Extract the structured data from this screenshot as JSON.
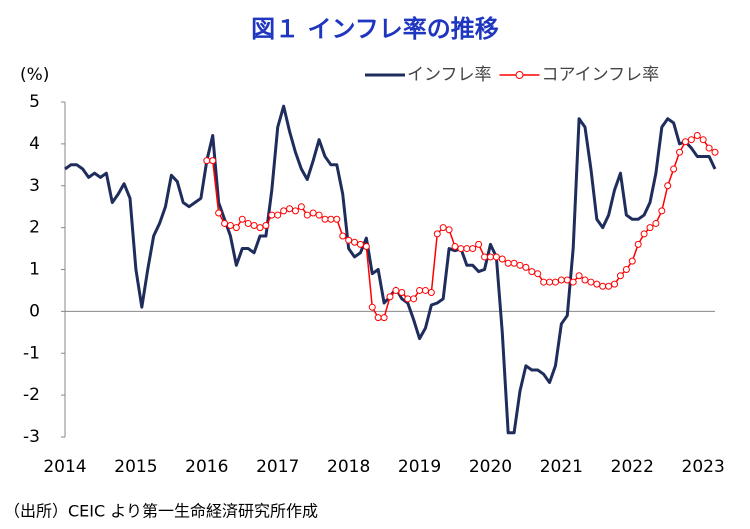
{
  "chart_data": {
    "type": "line",
    "title": "図１ インフレ率の推移",
    "y_label": "(%)",
    "source": "（出所）CEIC より第一生命経済研究所作成",
    "categories": [
      "2014",
      null,
      null,
      null,
      null,
      null,
      null,
      null,
      null,
      null,
      null,
      null,
      "2015",
      null,
      null,
      null,
      null,
      null,
      null,
      null,
      null,
      null,
      null,
      null,
      "2016",
      null,
      null,
      null,
      null,
      null,
      null,
      null,
      null,
      null,
      null,
      null,
      "2017",
      null,
      null,
      null,
      null,
      null,
      null,
      null,
      null,
      null,
      null,
      null,
      "2018",
      null,
      null,
      null,
      null,
      null,
      null,
      null,
      null,
      null,
      null,
      null,
      "2019",
      null,
      null,
      null,
      null,
      null,
      null,
      null,
      null,
      null,
      null,
      null,
      "2020",
      null,
      null,
      null,
      null,
      null,
      null,
      null,
      null,
      null,
      null,
      null,
      "2021",
      null,
      null,
      null,
      null,
      null,
      null,
      null,
      null,
      null,
      null,
      null,
      "2022",
      null,
      null,
      null,
      null,
      null,
      null,
      null,
      null,
      null,
      null,
      null,
      "2023",
      null,
      null
    ],
    "series": [
      {
        "name": "インフレ率",
        "color": "#1f2d5c",
        "marker": false,
        "values": [
          3.4,
          3.5,
          3.5,
          3.4,
          3.2,
          3.3,
          3.2,
          3.3,
          2.6,
          2.8,
          3.05,
          2.7,
          1.0,
          0.1,
          1.0,
          1.8,
          2.1,
          2.5,
          3.25,
          3.1,
          2.6,
          2.5,
          2.6,
          2.7,
          3.6,
          4.2,
          2.6,
          2.2,
          1.8,
          1.1,
          1.5,
          1.5,
          1.4,
          1.8,
          1.8,
          2.9,
          4.4,
          4.9,
          4.3,
          3.8,
          3.4,
          3.15,
          3.6,
          4.1,
          3.7,
          3.5,
          3.5,
          2.8,
          1.5,
          1.3,
          1.4,
          1.75,
          0.9,
          1.0,
          0.2,
          0.35,
          0.55,
          0.3,
          0.2,
          -0.2,
          -0.65,
          -0.4,
          0.15,
          0.2,
          0.3,
          1.5,
          1.45,
          1.5,
          1.1,
          1.1,
          0.95,
          1.0,
          1.6,
          1.3,
          -0.5,
          -2.9,
          -2.9,
          -1.9,
          -1.3,
          -1.4,
          -1.4,
          -1.5,
          -1.7,
          -1.3,
          -0.3,
          -0.1,
          1.5,
          4.6,
          4.4,
          3.4,
          2.2,
          2.0,
          2.3,
          2.9,
          3.3,
          2.3,
          2.2,
          2.2,
          2.3,
          2.6,
          3.3,
          4.4,
          4.6,
          4.5,
          4.0,
          4.05,
          3.9,
          3.7,
          3.7,
          3.7,
          3.4
        ]
      },
      {
        "name": "コアインフレ率",
        "color": "#ff0000",
        "marker": true,
        "values": [
          null,
          null,
          null,
          null,
          null,
          null,
          null,
          null,
          null,
          null,
          null,
          null,
          null,
          null,
          null,
          null,
          null,
          null,
          null,
          null,
          null,
          null,
          null,
          null,
          3.6,
          3.6,
          2.35,
          2.1,
          2.05,
          2.0,
          2.2,
          2.1,
          2.05,
          2.0,
          2.05,
          2.3,
          2.3,
          2.4,
          2.45,
          2.4,
          2.5,
          2.3,
          2.35,
          2.3,
          2.2,
          2.2,
          2.2,
          1.8,
          1.7,
          1.65,
          1.6,
          1.55,
          0.1,
          -0.15,
          -0.15,
          0.35,
          0.5,
          0.45,
          0.3,
          0.3,
          0.5,
          0.5,
          0.45,
          1.85,
          2.0,
          1.95,
          1.55,
          1.5,
          1.5,
          1.5,
          1.6,
          1.3,
          1.3,
          1.3,
          1.25,
          1.15,
          1.15,
          1.1,
          1.05,
          0.95,
          0.9,
          0.7,
          0.7,
          0.7,
          0.75,
          0.75,
          0.7,
          0.85,
          0.75,
          0.7,
          0.65,
          0.6,
          0.6,
          0.65,
          0.85,
          1.0,
          1.2,
          1.6,
          1.85,
          2.0,
          2.1,
          2.4,
          3.0,
          3.4,
          3.8,
          4.05,
          4.1,
          4.2,
          4.1,
          3.9,
          3.8
        ]
      }
    ],
    "ylim": [
      -3,
      5
    ],
    "yticks": [
      -3,
      -2,
      -1,
      0,
      1,
      2,
      3,
      4,
      5
    ],
    "grid": false,
    "legend": "top-right"
  }
}
